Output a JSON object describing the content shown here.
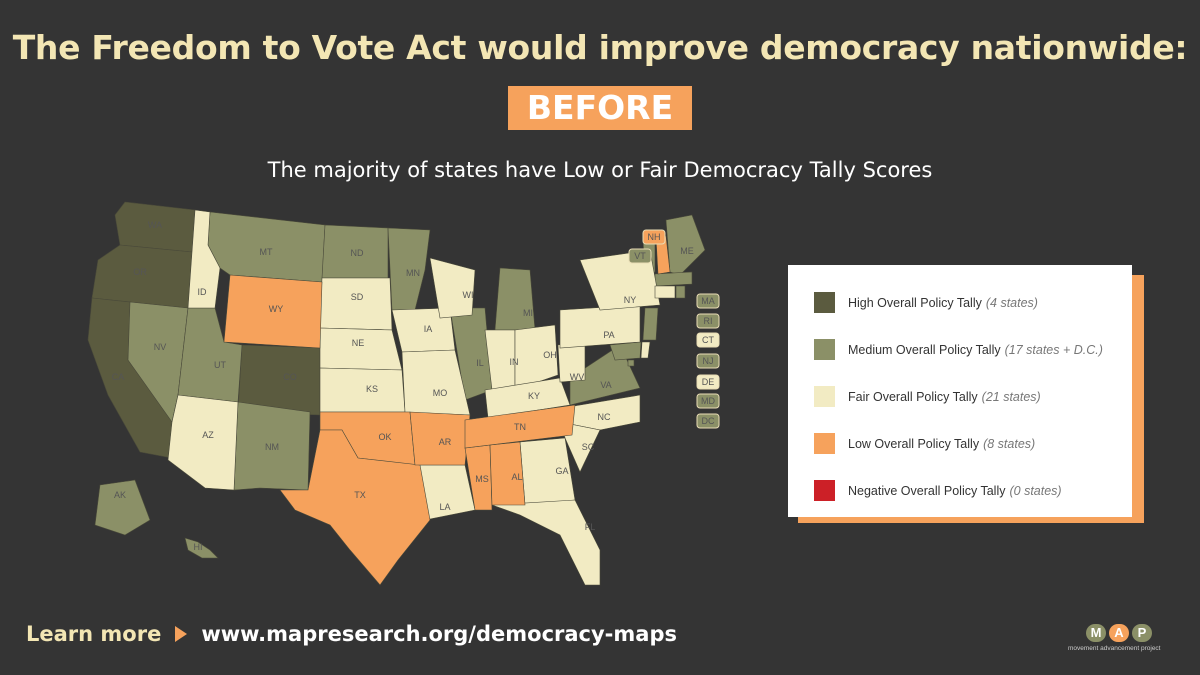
{
  "title": "The Freedom to Vote Act would improve democracy nationwide:",
  "badge": "BEFORE",
  "subtitle": "The majority of states have Low or Fair Democracy Tally Scores",
  "colors": {
    "background": "#343434",
    "high": "#5b5b3f",
    "medium": "#8b9067",
    "fair": "#f2ebc3",
    "low": "#f6a25c",
    "negative": "#cc2027",
    "accent": "#f6a25c",
    "title": "#f3e6b4"
  },
  "legend": [
    {
      "label": "High Overall Policy Tally",
      "note": "(4 states)",
      "level": "high"
    },
    {
      "label": "Medium Overall Policy Tally",
      "note": "(17 states + D.C.)",
      "level": "medium"
    },
    {
      "label": "Fair Overall Policy Tally",
      "note": "(21 states)",
      "level": "fair"
    },
    {
      "label": "Low Overall Policy Tally",
      "note": "(8 states)",
      "level": "low"
    },
    {
      "label": "Negative Overall Policy Tally",
      "note": "(0 states)",
      "level": "negative"
    }
  ],
  "states": [
    {
      "code": "WA",
      "level": "high"
    },
    {
      "code": "OR",
      "level": "high"
    },
    {
      "code": "CA",
      "level": "high"
    },
    {
      "code": "CO",
      "level": "high"
    },
    {
      "code": "NV",
      "level": "medium"
    },
    {
      "code": "UT",
      "level": "medium"
    },
    {
      "code": "MT",
      "level": "medium"
    },
    {
      "code": "ND",
      "level": "medium"
    },
    {
      "code": "MN",
      "level": "medium"
    },
    {
      "code": "MI",
      "level": "medium"
    },
    {
      "code": "IL",
      "level": "medium"
    },
    {
      "code": "NM",
      "level": "medium"
    },
    {
      "code": "VA",
      "level": "medium"
    },
    {
      "code": "ME",
      "level": "medium"
    },
    {
      "code": "VT",
      "level": "medium"
    },
    {
      "code": "MA",
      "level": "medium"
    },
    {
      "code": "RI",
      "level": "medium"
    },
    {
      "code": "NJ",
      "level": "medium"
    },
    {
      "code": "MD",
      "level": "medium"
    },
    {
      "code": "DC",
      "level": "medium"
    },
    {
      "code": "AK",
      "level": "medium"
    },
    {
      "code": "HI",
      "level": "medium"
    },
    {
      "code": "ID",
      "level": "fair"
    },
    {
      "code": "SD",
      "level": "fair"
    },
    {
      "code": "NE",
      "level": "fair"
    },
    {
      "code": "KS",
      "level": "fair"
    },
    {
      "code": "IA",
      "level": "fair"
    },
    {
      "code": "MO",
      "level": "fair"
    },
    {
      "code": "WI",
      "level": "fair"
    },
    {
      "code": "IN",
      "level": "fair"
    },
    {
      "code": "OH",
      "level": "fair"
    },
    {
      "code": "KY",
      "level": "fair"
    },
    {
      "code": "WV",
      "level": "fair"
    },
    {
      "code": "PA",
      "level": "fair"
    },
    {
      "code": "NY",
      "level": "fair"
    },
    {
      "code": "CT",
      "level": "fair"
    },
    {
      "code": "DE",
      "level": "fair"
    },
    {
      "code": "NC",
      "level": "fair"
    },
    {
      "code": "SC",
      "level": "fair"
    },
    {
      "code": "GA",
      "level": "fair"
    },
    {
      "code": "FL",
      "level": "fair"
    },
    {
      "code": "LA",
      "level": "fair"
    },
    {
      "code": "AZ",
      "level": "fair"
    },
    {
      "code": "WY",
      "level": "low"
    },
    {
      "code": "OK",
      "level": "low"
    },
    {
      "code": "TX",
      "level": "low"
    },
    {
      "code": "AR",
      "level": "low"
    },
    {
      "code": "MS",
      "level": "low"
    },
    {
      "code": "AL",
      "level": "low"
    },
    {
      "code": "TN",
      "level": "low"
    },
    {
      "code": "NH",
      "level": "low"
    }
  ],
  "footer": {
    "learn": "Learn more",
    "url": "www.mapresearch.org/democracy-maps"
  },
  "logo": {
    "letters": [
      "M",
      "A",
      "P"
    ],
    "sub": "movement advancement project"
  }
}
